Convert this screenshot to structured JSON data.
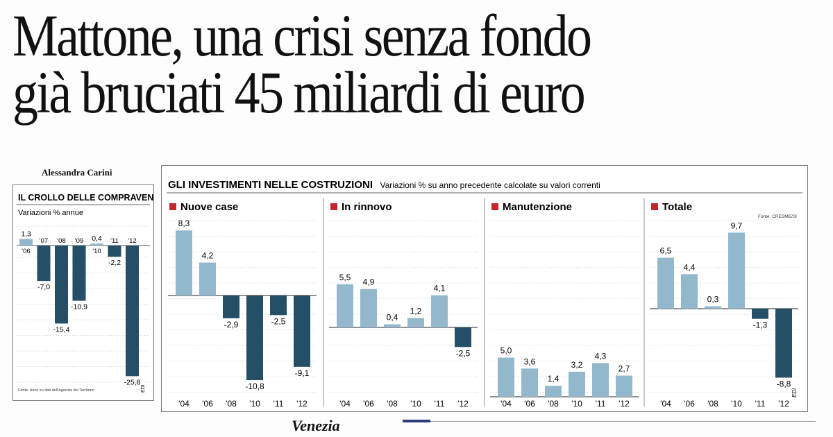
{
  "headline": {
    "line1": "Mattone, una crisi senza fondo",
    "line2": "già bruciati 45 miliardi di euro"
  },
  "byline": "Alessandra Carini",
  "footer_place": "Venezia",
  "colors": {
    "bar_light": "#93b8cc",
    "bar_dark": "#244f66",
    "square": "#c4262e"
  },
  "left_chart": {
    "title": "IL CROLLO DELLE COMPRAVENDITE",
    "subtitle": "Variazioni % annue",
    "source": "Fonte: Ance su dati dell'Agenzia del Territorio",
    "signature": "EDI"
  },
  "right_chart": {
    "title": "GLI INVESTIMENTI NELLE COSTRUZIONI",
    "subtitle": "Variazioni % su anno precedente calcolate su valori correnti",
    "source": "Fonte: CRESME/SI",
    "signature": "EDI"
  },
  "chart_data": [
    {
      "type": "bar",
      "title": "IL CROLLO DELLE COMPRAVENDITE",
      "subtitle": "Variazioni % annue",
      "categories": [
        "'06",
        "'07",
        "'08",
        "'09",
        "'10",
        "'11",
        "'12"
      ],
      "values": [
        1.3,
        -7.0,
        -15.4,
        -10.9,
        0.4,
        -2.2,
        -25.8
      ],
      "labels": [
        "1,3",
        "-7,0",
        "-15,4",
        "-10,9",
        "0,4",
        "-2,2",
        "-25,8"
      ]
    },
    {
      "type": "bar",
      "title": "Nuove case",
      "categories": [
        "'04",
        "'06",
        "'08",
        "'10",
        "'11",
        "'12"
      ],
      "values": [
        8.3,
        4.2,
        -2.9,
        -10.8,
        -2.5,
        -9.1
      ],
      "labels": [
        "8,3",
        "4,2",
        "-2,9",
        "-10,8",
        "-2,5",
        "-9,1"
      ]
    },
    {
      "type": "bar",
      "title": "In rinnovo",
      "categories": [
        "'04",
        "'06",
        "'08",
        "'10",
        "'11",
        "'12"
      ],
      "values": [
        5.5,
        4.9,
        0.4,
        1.2,
        4.1,
        -2.5
      ],
      "labels": [
        "5,5",
        "4,9",
        "0,4",
        "1,2",
        "4,1",
        "-2,5"
      ]
    },
    {
      "type": "bar",
      "title": "Manutenzione",
      "categories": [
        "'04",
        "'06",
        "'08",
        "'10",
        "'11",
        "'12"
      ],
      "values": [
        5.0,
        3.6,
        1.4,
        3.2,
        4.3,
        2.7
      ],
      "labels": [
        "5,0",
        "3,6",
        "1,4",
        "3,2",
        "4,3",
        "2,7"
      ]
    },
    {
      "type": "bar",
      "title": "Totale",
      "categories": [
        "'04",
        "'06",
        "'08",
        "'10",
        "'11",
        "'12"
      ],
      "values": [
        6.5,
        4.4,
        0.3,
        9.7,
        -1.3,
        -8.8
      ],
      "labels": [
        "6,5",
        "4,4",
        "0,3",
        "9,7",
        "-1,3",
        "-8,8"
      ]
    }
  ]
}
